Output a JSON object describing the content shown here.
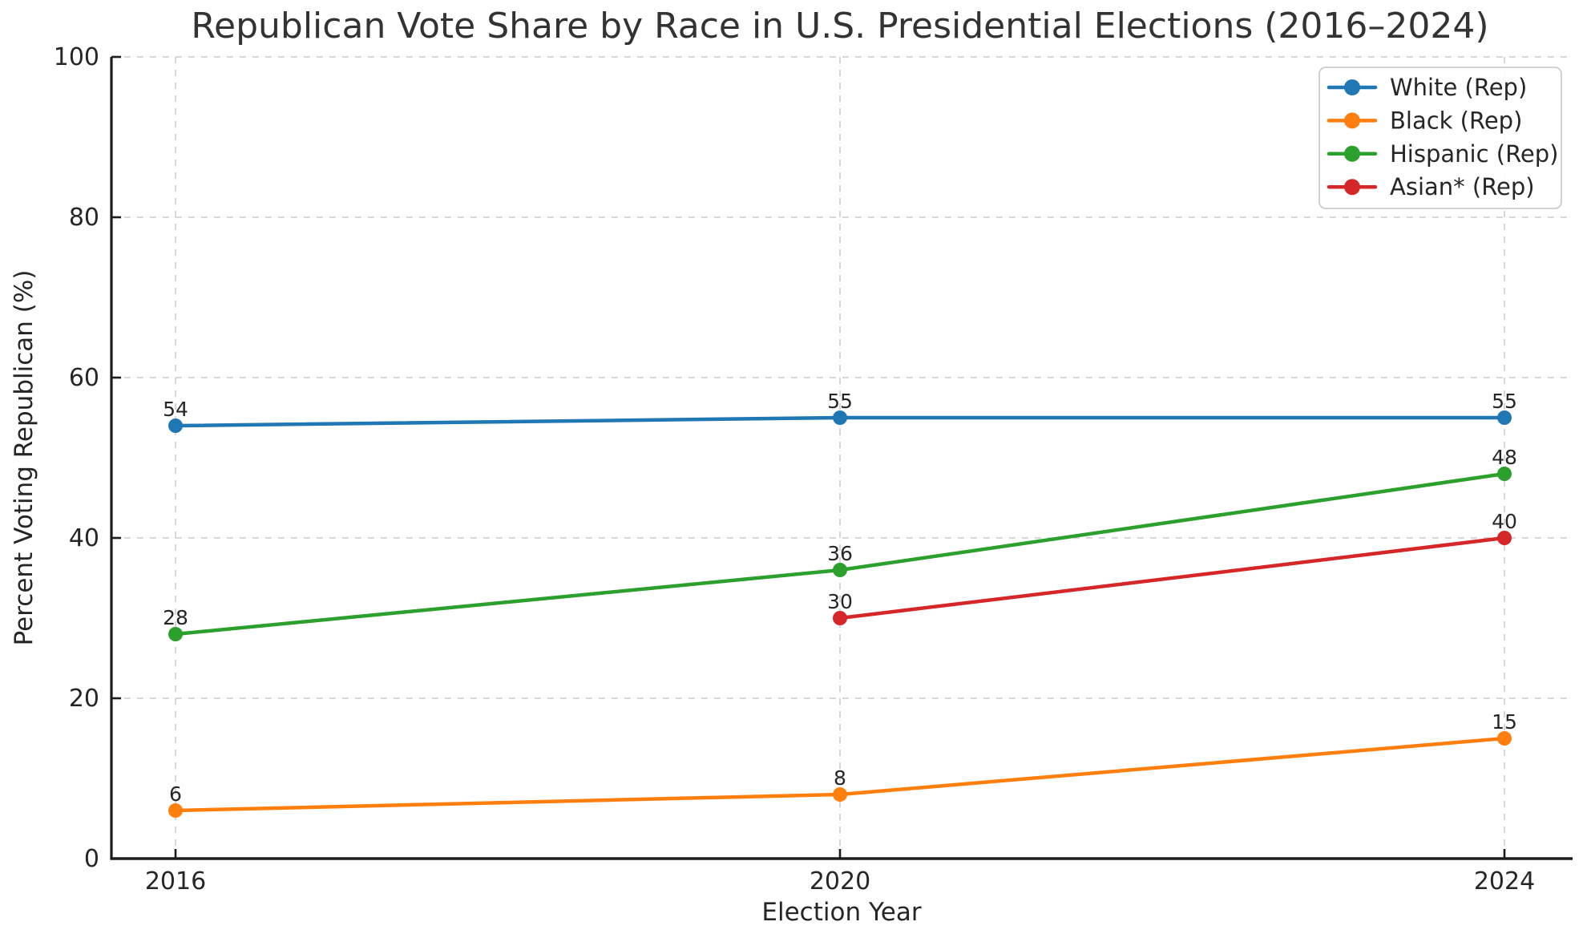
{
  "chart_data": {
    "type": "line",
    "title": "Republican Vote Share by Race in U.S. Presidential Elections (2016–2024)",
    "xlabel": "Election Year",
    "ylabel": "Percent Voting Republican (%)",
    "x_ticks": [
      2016,
      2020,
      2024
    ],
    "x_tick_labels": [
      "2016",
      "2020",
      "2024"
    ],
    "y_ticks": [
      0,
      20,
      40,
      60,
      80,
      100
    ],
    "y_tick_labels": [
      "0",
      "20",
      "40",
      "60",
      "80",
      "100"
    ],
    "ylim": [
      0,
      100
    ],
    "grid": true,
    "grid_style": "dashed",
    "legend_position": "upper right",
    "point_labels_visible": true,
    "series": [
      {
        "name": "White (Rep)",
        "color": "#1f77b4",
        "x": [
          2016,
          2020,
          2024
        ],
        "values": [
          54,
          55,
          55
        ]
      },
      {
        "name": "Black (Rep)",
        "color": "#ff7f0e",
        "x": [
          2016,
          2020,
          2024
        ],
        "values": [
          6,
          8,
          15
        ]
      },
      {
        "name": "Hispanic (Rep)",
        "color": "#2ca02c",
        "x": [
          2016,
          2020,
          2024
        ],
        "values": [
          28,
          36,
          48
        ]
      },
      {
        "name": "Asian* (Rep)",
        "color": "#d62728",
        "x": [
          2020,
          2024
        ],
        "values": [
          30,
          40
        ]
      }
    ]
  }
}
